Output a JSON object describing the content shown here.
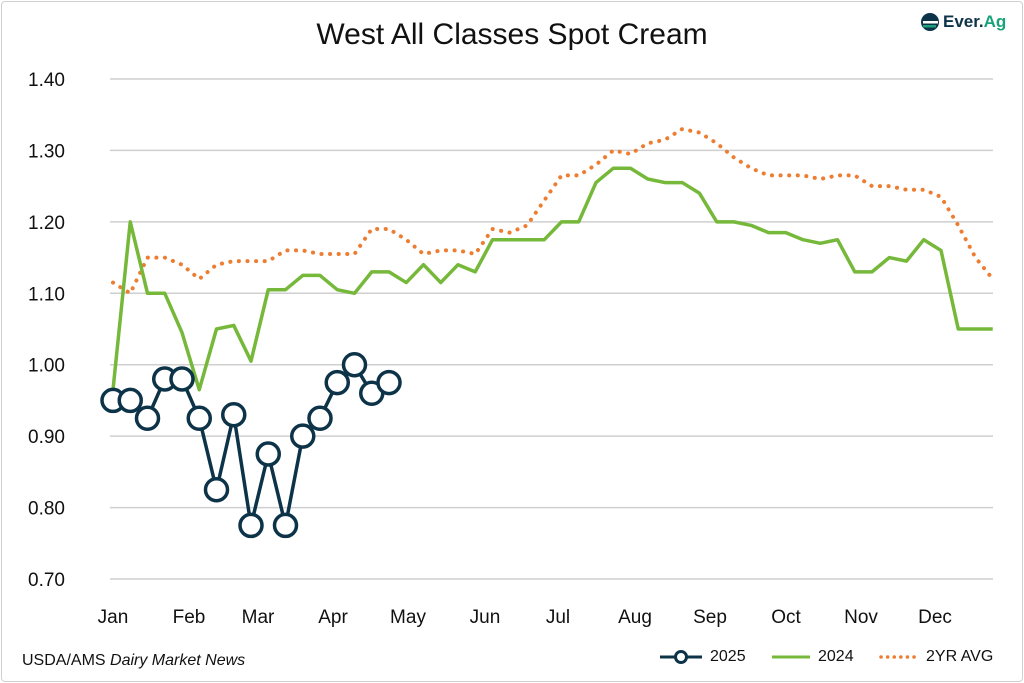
{
  "chart_data": {
    "type": "line",
    "title": "West All Classes Spot Cream",
    "xlabel": "",
    "ylabel": "",
    "x_tick_labels": [
      "Jan",
      "Feb",
      "Mar",
      "Apr",
      "May",
      "Jun",
      "Jul",
      "Aug",
      "Sep",
      "Oct",
      "Nov",
      "Dec"
    ],
    "x_unit": "week of year",
    "y_tick_labels": [
      "0.70",
      "0.80",
      "0.90",
      "1.00",
      "1.10",
      "1.20",
      "1.30",
      "1.40"
    ],
    "ylim": [
      0.7,
      1.4
    ],
    "grid": "horizontal",
    "legend_position": "bottom-right",
    "series": [
      {
        "name": "2025",
        "color": "#0d3349",
        "marker": "open-circle",
        "style": "solid",
        "values": [
          0.95,
          0.95,
          0.925,
          0.98,
          0.98,
          0.925,
          0.825,
          0.93,
          0.775,
          0.875,
          0.775,
          0.9,
          0.925,
          0.975,
          1.0,
          0.96,
          0.975
        ]
      },
      {
        "name": "2024",
        "color": "#76b83a",
        "style": "solid",
        "values": [
          0.965,
          1.2,
          1.1,
          1.1,
          1.045,
          0.965,
          1.05,
          1.055,
          1.005,
          1.105,
          1.105,
          1.125,
          1.125,
          1.105,
          1.1,
          1.13,
          1.13,
          1.115,
          1.14,
          1.115,
          1.14,
          1.13,
          1.175,
          1.175,
          1.175,
          1.175,
          1.2,
          1.2,
          1.255,
          1.275,
          1.275,
          1.26,
          1.255,
          1.255,
          1.24,
          1.2,
          1.2,
          1.195,
          1.185,
          1.185,
          1.175,
          1.17,
          1.175,
          1.13,
          1.13,
          1.15,
          1.145,
          1.175,
          1.16,
          1.05,
          1.05,
          1.05
        ]
      },
      {
        "name": "2YR AVG",
        "color": "#ed7d31",
        "style": "dotted",
        "values": [
          1.115,
          1.1,
          1.15,
          1.15,
          1.14,
          1.12,
          1.14,
          1.145,
          1.145,
          1.145,
          1.16,
          1.16,
          1.155,
          1.155,
          1.155,
          1.19,
          1.19,
          1.175,
          1.155,
          1.16,
          1.16,
          1.155,
          1.19,
          1.185,
          1.195,
          1.23,
          1.265,
          1.265,
          1.28,
          1.3,
          1.295,
          1.31,
          1.315,
          1.33,
          1.325,
          1.31,
          1.29,
          1.275,
          1.265,
          1.265,
          1.265,
          1.26,
          1.265,
          1.265,
          1.25,
          1.25,
          1.245,
          1.245,
          1.235,
          1.195,
          1.15,
          1.12
        ]
      }
    ]
  },
  "source": {
    "prefix": "USDA/AMS ",
    "publication": "Dairy Market News"
  },
  "logo": {
    "text_main": "Ever.",
    "text_accent": "Ag"
  }
}
